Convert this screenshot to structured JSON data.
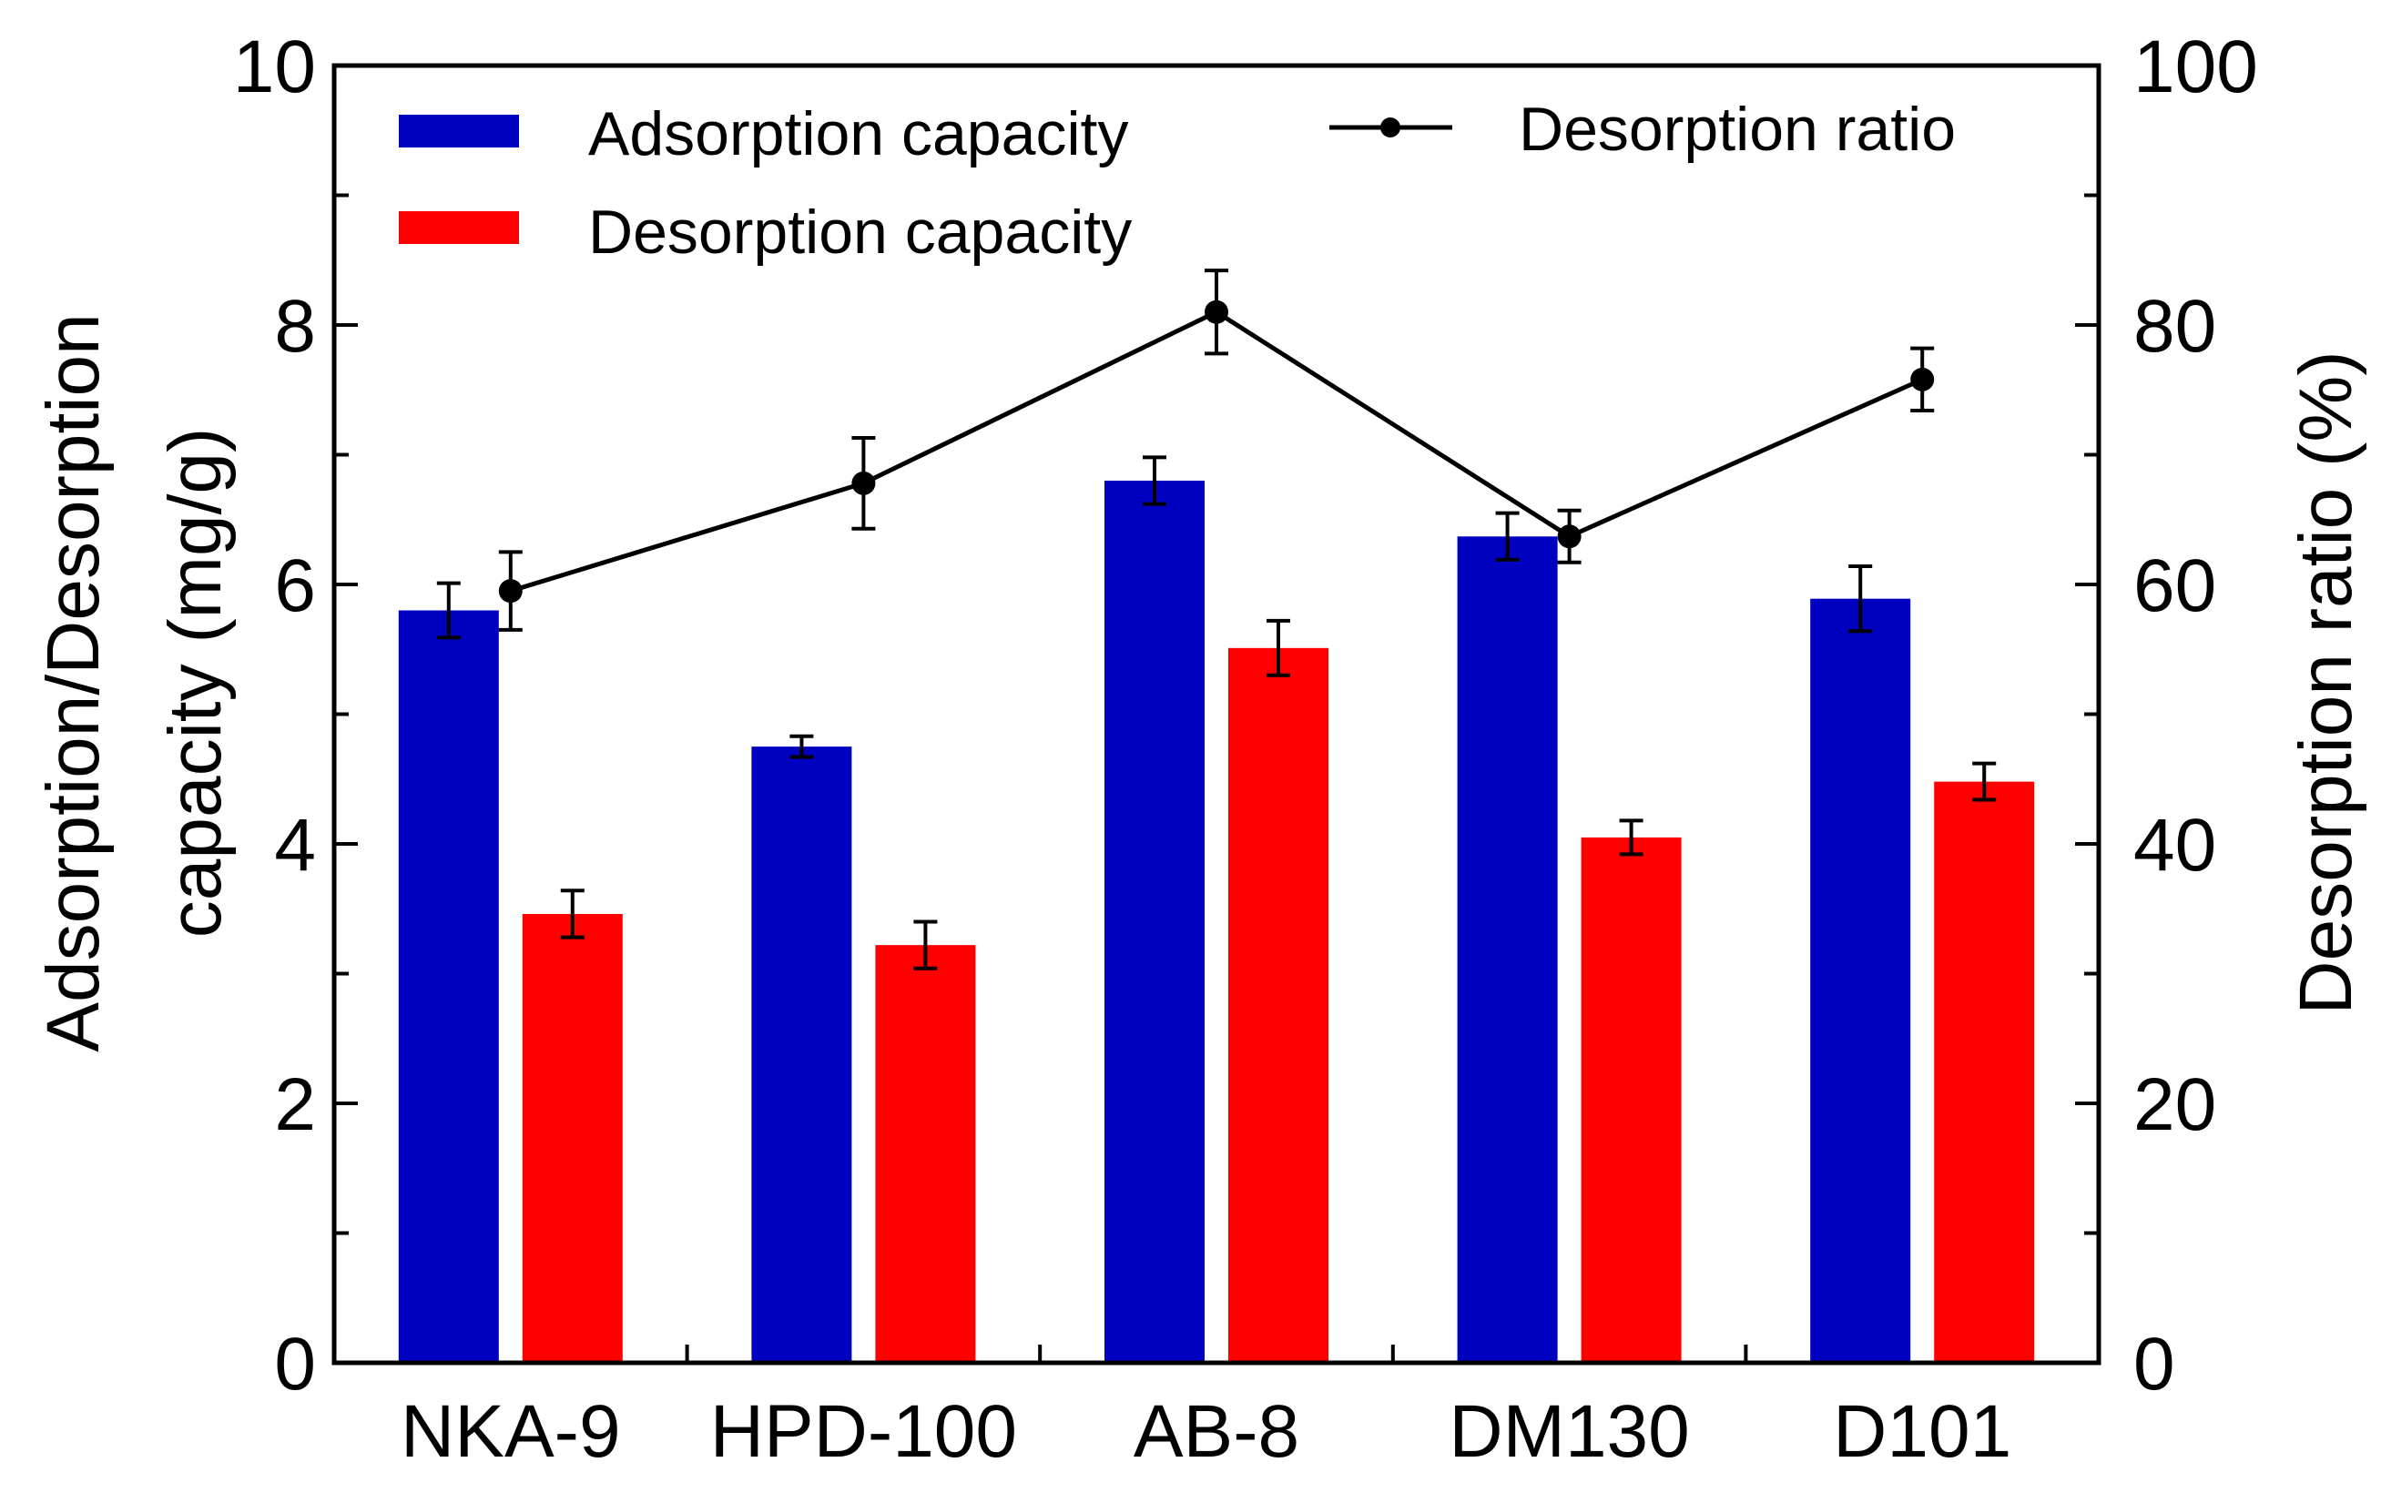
{
  "chart_data": {
    "type": "bar",
    "categories": [
      "NKA-9",
      "HPD-100",
      "AB-8",
      "DM130",
      "D101"
    ],
    "series": [
      {
        "name": "Adsorption capacity",
        "axis": "left",
        "color": "#0000C0",
        "values": [
          5.8,
          4.75,
          6.8,
          6.37,
          5.89
        ],
        "errors": [
          0.21,
          0.08,
          0.18,
          0.18,
          0.25
        ]
      },
      {
        "name": "Desorption capacity",
        "axis": "left",
        "color": "#FF0000",
        "values": [
          3.46,
          3.22,
          5.51,
          4.05,
          4.48
        ],
        "errors": [
          0.18,
          0.18,
          0.21,
          0.13,
          0.14
        ]
      },
      {
        "name": "Desorption ratio",
        "type": "line",
        "axis": "right",
        "color": "#000000",
        "values": [
          59.5,
          67.8,
          81.0,
          63.7,
          75.8
        ],
        "errors": [
          3.0,
          3.5,
          3.2,
          2.0,
          2.4
        ]
      }
    ],
    "ylabel": "Adsorption/Desorption capacity (mg/g)",
    "ylabel_lines": [
      "Adsorption/Desorption",
      "capacity (mg/g)"
    ],
    "ylim": [
      0,
      10
    ],
    "yticks": [
      "0",
      "2",
      "4",
      "6",
      "8",
      "10"
    ],
    "y2label": "Desorption ratio (%)",
    "y2lim": [
      0,
      100
    ],
    "y2ticks": [
      "0",
      "20",
      "40",
      "60",
      "80",
      "100"
    ],
    "legend": {
      "placement": "top",
      "items": [
        "Adsorption capacity",
        "Desorption capacity",
        "Desorption ratio"
      ]
    }
  }
}
